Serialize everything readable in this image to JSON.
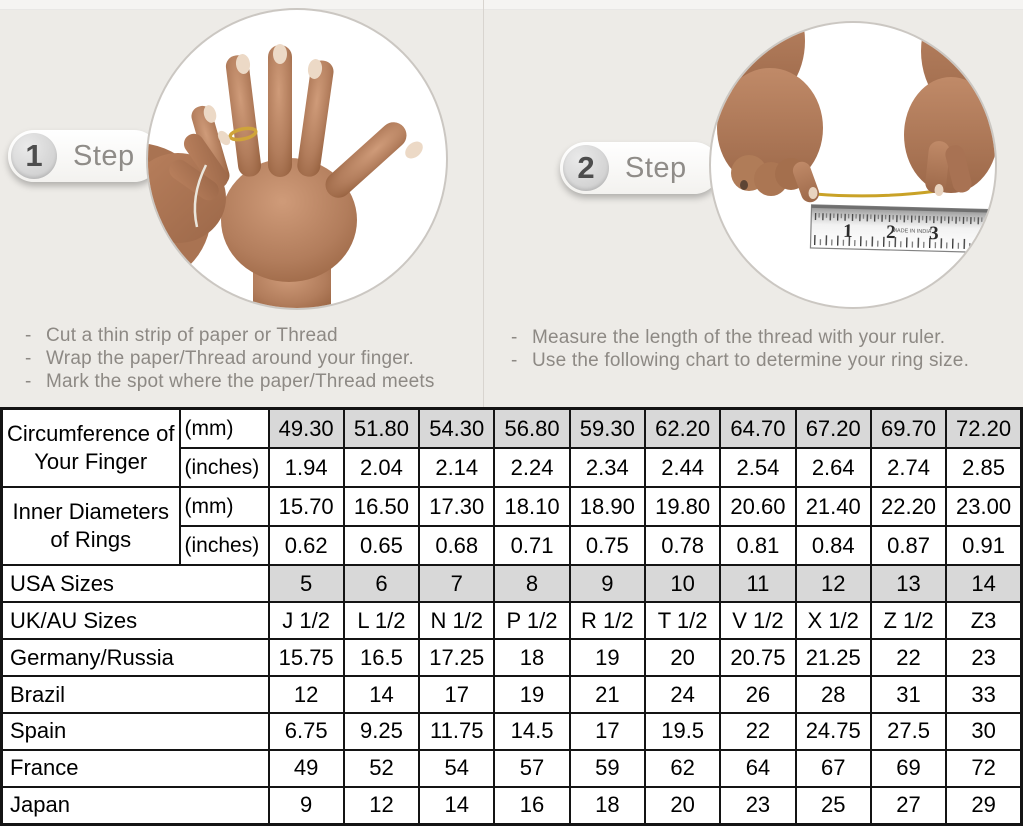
{
  "colors": {
    "background": "#edebe7",
    "divider": "#d8d4cf",
    "shaded_cell": "#d8d8d8",
    "table_border": "#141414",
    "step_text": "#8f8c88",
    "instruction_text": "#8d8984",
    "thread_gold": "#c9a227"
  },
  "steps": [
    {
      "number": "1",
      "label": "Step",
      "instructions": [
        "Cut a thin strip of paper or Thread",
        "Wrap the paper/Thread around your finger.",
        "Mark the spot where the paper/Thread meets"
      ]
    },
    {
      "number": "2",
      "label": "Step",
      "instructions": [
        "Measure the length of the thread with your ruler.",
        "Use the following chart to determine your ring size."
      ],
      "ruler": {
        "numbers": [
          "1",
          "2",
          "3"
        ],
        "brand_text": "MADE IN INDIA"
      }
    }
  ],
  "table": {
    "groups": [
      {
        "label": "Circumference of Your Finger",
        "rows": [
          {
            "unit": "(mm)",
            "shaded": true,
            "values": [
              "49.30",
              "51.80",
              "54.30",
              "56.80",
              "59.30",
              "62.20",
              "64.70",
              "67.20",
              "69.70",
              "72.20"
            ]
          },
          {
            "unit": "(inches)",
            "shaded": false,
            "values": [
              "1.94",
              "2.04",
              "2.14",
              "2.24",
              "2.34",
              "2.44",
              "2.54",
              "2.64",
              "2.74",
              "2.85"
            ]
          }
        ]
      },
      {
        "label": "Inner Diameters of Rings",
        "rows": [
          {
            "unit": "(mm)",
            "shaded": false,
            "values": [
              "15.70",
              "16.50",
              "17.30",
              "18.10",
              "18.90",
              "19.80",
              "20.60",
              "21.40",
              "22.20",
              "23.00"
            ]
          },
          {
            "unit": "(inches)",
            "shaded": false,
            "values": [
              "0.62",
              "0.65",
              "0.68",
              "0.71",
              "0.75",
              "0.78",
              "0.81",
              "0.84",
              "0.87",
              "0.91"
            ]
          }
        ]
      }
    ],
    "size_rows": [
      {
        "label": "USA Sizes",
        "shaded": true,
        "values": [
          "5",
          "6",
          "7",
          "8",
          "9",
          "10",
          "11",
          "12",
          "13",
          "14"
        ]
      },
      {
        "label": "UK/AU Sizes",
        "shaded": false,
        "values": [
          "J 1/2",
          "L 1/2",
          "N 1/2",
          "P 1/2",
          "R 1/2",
          "T 1/2",
          "V 1/2",
          "X 1/2",
          "Z 1/2",
          "Z3"
        ]
      },
      {
        "label": "Germany/Russia",
        "shaded": false,
        "values": [
          "15.75",
          "16.5",
          "17.25",
          "18",
          "19",
          "20",
          "20.75",
          "21.25",
          "22",
          "23"
        ]
      },
      {
        "label": "Brazil",
        "shaded": false,
        "values": [
          "12",
          "14",
          "17",
          "19",
          "21",
          "24",
          "26",
          "28",
          "31",
          "33"
        ]
      },
      {
        "label": "Spain",
        "shaded": false,
        "values": [
          "6.75",
          "9.25",
          "11.75",
          "14.5",
          "17",
          "19.5",
          "22",
          "24.75",
          "27.5",
          "30"
        ]
      },
      {
        "label": "France",
        "shaded": false,
        "values": [
          "49",
          "52",
          "54",
          "57",
          "59",
          "62",
          "64",
          "67",
          "69",
          "72"
        ]
      },
      {
        "label": "Japan",
        "shaded": false,
        "values": [
          "9",
          "12",
          "14",
          "16",
          "18",
          "20",
          "23",
          "25",
          "27",
          "29"
        ]
      }
    ]
  }
}
